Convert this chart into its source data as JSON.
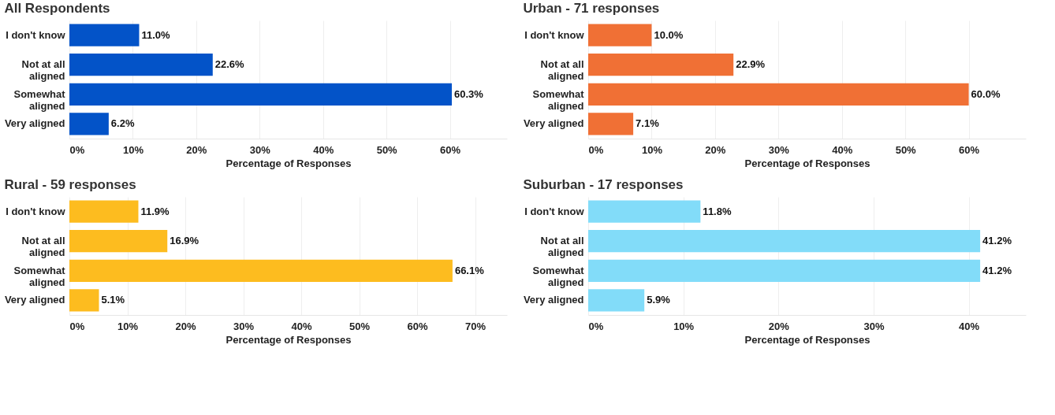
{
  "chart_data": [
    {
      "type": "bar",
      "orientation": "horizontal",
      "title": "All Respondents",
      "xlabel": "Percentage of Responses",
      "categories": [
        "I don't know",
        "Not at all aligned",
        "Somewhat aligned",
        "Very aligned"
      ],
      "values": [
        11.0,
        22.6,
        60.3,
        6.2
      ],
      "color": "#0353c8",
      "value_labels": [
        "11.0%",
        "22.6%",
        "60.3%",
        "6.2%"
      ],
      "xlim": [
        0,
        69
      ],
      "xticks": [
        {
          "value": 0,
          "label": "0%"
        },
        {
          "value": 10,
          "label": "10%"
        },
        {
          "value": 20,
          "label": "20%"
        },
        {
          "value": 30,
          "label": "30%"
        },
        {
          "value": 40,
          "label": "40%"
        },
        {
          "value": 50,
          "label": "50%"
        },
        {
          "value": 60,
          "label": "60%"
        }
      ],
      "grid": "x"
    },
    {
      "type": "bar",
      "orientation": "horizontal",
      "title": "Urban - 71 responses",
      "xlabel": "Percentage of Responses",
      "categories": [
        "I don't know",
        "Not at all aligned",
        "Somewhat aligned",
        "Very aligned"
      ],
      "values": [
        10.0,
        22.9,
        60.0,
        7.1
      ],
      "color": "#f07035",
      "value_labels": [
        "10.0%",
        "22.9%",
        "60.0%",
        "7.1%"
      ],
      "xlim": [
        0,
        69
      ],
      "xticks": [
        {
          "value": 0,
          "label": "0%"
        },
        {
          "value": 10,
          "label": "10%"
        },
        {
          "value": 20,
          "label": "20%"
        },
        {
          "value": 30,
          "label": "30%"
        },
        {
          "value": 40,
          "label": "40%"
        },
        {
          "value": 50,
          "label": "50%"
        },
        {
          "value": 60,
          "label": "60%"
        }
      ],
      "grid": "x"
    },
    {
      "type": "bar",
      "orientation": "horizontal",
      "title": "Rural - 59 responses",
      "xlabel": "Percentage of Responses",
      "categories": [
        "I don't know",
        "Not at all aligned",
        "Somewhat aligned",
        "Very aligned"
      ],
      "values": [
        11.9,
        16.9,
        66.1,
        5.1
      ],
      "color": "#fdbc1f",
      "value_labels": [
        "11.9%",
        "16.9%",
        "66.1%",
        "5.1%"
      ],
      "xlim": [
        0,
        75.5
      ],
      "xticks": [
        {
          "value": 0,
          "label": "0%"
        },
        {
          "value": 10,
          "label": "10%"
        },
        {
          "value": 20,
          "label": "20%"
        },
        {
          "value": 30,
          "label": "30%"
        },
        {
          "value": 40,
          "label": "40%"
        },
        {
          "value": 50,
          "label": "50%"
        },
        {
          "value": 60,
          "label": "60%"
        },
        {
          "value": 70,
          "label": "70%"
        }
      ],
      "grid": "x"
    },
    {
      "type": "bar",
      "orientation": "horizontal",
      "title": "Suburban - 17 responses",
      "xlabel": "Percentage of Responses",
      "categories": [
        "I don't know",
        "Not at all aligned",
        "Somewhat aligned",
        "Very aligned"
      ],
      "values": [
        11.8,
        41.2,
        41.2,
        5.9
      ],
      "color": "#82dcf9",
      "value_labels": [
        "11.8%",
        "41.2%",
        "41.2%",
        "5.9%"
      ],
      "xlim": [
        0,
        46
      ],
      "xticks": [
        {
          "value": 0,
          "label": "0%"
        },
        {
          "value": 10,
          "label": "10%"
        },
        {
          "value": 20,
          "label": "20%"
        },
        {
          "value": 30,
          "label": "30%"
        },
        {
          "value": 40,
          "label": "40%"
        }
      ],
      "grid": "x"
    }
  ]
}
